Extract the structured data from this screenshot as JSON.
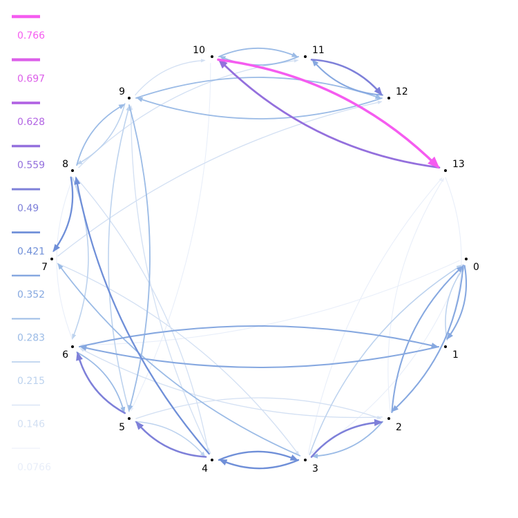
{
  "legend": {
    "entries": [
      {
        "label": "0.766",
        "color": "#f55cf0"
      },
      {
        "label": "0.697",
        "color": "#dc5fe9"
      },
      {
        "label": "0.628",
        "color": "#b264e3"
      },
      {
        "label": "0.559",
        "color": "#9470dd"
      },
      {
        "label": "0.49",
        "color": "#7e80d9"
      },
      {
        "label": "0.421",
        "color": "#6f8fd8"
      },
      {
        "label": "0.352",
        "color": "#86a8e0"
      },
      {
        "label": "0.283",
        "color": "#9bbbe6"
      },
      {
        "label": "0.215",
        "color": "#bcd2ee"
      },
      {
        "label": "0.146",
        "color": "#d3e0f3"
      },
      {
        "label": "0.0766",
        "color": "#e8eef9"
      }
    ]
  },
  "nodes": [
    {
      "id": "0",
      "label": "0"
    },
    {
      "id": "1",
      "label": "1"
    },
    {
      "id": "2",
      "label": "2"
    },
    {
      "id": "3",
      "label": "3"
    },
    {
      "id": "4",
      "label": "4"
    },
    {
      "id": "5",
      "label": "5"
    },
    {
      "id": "6",
      "label": "6"
    },
    {
      "id": "7",
      "label": "7"
    },
    {
      "id": "8",
      "label": "8"
    },
    {
      "id": "9",
      "label": "9"
    },
    {
      "id": "10",
      "label": "10"
    },
    {
      "id": "11",
      "label": "11"
    },
    {
      "id": "12",
      "label": "12"
    },
    {
      "id": "13",
      "label": "13"
    }
  ],
  "edges": [
    {
      "from": "10",
      "to": "13",
      "weight": 0.766
    },
    {
      "from": "13",
      "to": "10",
      "weight": 0.559
    },
    {
      "from": "11",
      "to": "12",
      "weight": 0.49
    },
    {
      "from": "12",
      "to": "11",
      "weight": 0.352
    },
    {
      "from": "10",
      "to": "11",
      "weight": 0.283
    },
    {
      "from": "11",
      "to": "10",
      "weight": 0.283
    },
    {
      "from": "12",
      "to": "9",
      "weight": 0.283
    },
    {
      "from": "9",
      "to": "12",
      "weight": 0.283
    },
    {
      "from": "8",
      "to": "7",
      "weight": 0.421
    },
    {
      "from": "8",
      "to": "9",
      "weight": 0.283
    },
    {
      "from": "9",
      "to": "8",
      "weight": 0.215
    },
    {
      "from": "4",
      "to": "5",
      "weight": 0.49
    },
    {
      "from": "5",
      "to": "6",
      "weight": 0.49
    },
    {
      "from": "3",
      "to": "4",
      "weight": 0.421
    },
    {
      "from": "4",
      "to": "3",
      "weight": 0.421
    },
    {
      "from": "3",
      "to": "2",
      "weight": 0.49
    },
    {
      "from": "4",
      "to": "8",
      "weight": 0.421
    },
    {
      "from": "2",
      "to": "0",
      "weight": 0.352
    },
    {
      "from": "0",
      "to": "2",
      "weight": 0.352
    },
    {
      "from": "0",
      "to": "1",
      "weight": 0.352
    },
    {
      "from": "1",
      "to": "6",
      "weight": 0.352
    },
    {
      "from": "6",
      "to": "1",
      "weight": 0.352
    },
    {
      "from": "2",
      "to": "3",
      "weight": 0.283
    },
    {
      "from": "3",
      "to": "7",
      "weight": 0.283
    },
    {
      "from": "9",
      "to": "5",
      "weight": 0.283
    },
    {
      "from": "5",
      "to": "9",
      "weight": 0.215
    },
    {
      "from": "8",
      "to": "6",
      "weight": 0.215
    },
    {
      "from": "6",
      "to": "5",
      "weight": 0.283
    },
    {
      "from": "1",
      "to": "0",
      "weight": 0.215
    },
    {
      "from": "3",
      "to": "0",
      "weight": 0.215
    },
    {
      "from": "5",
      "to": "4",
      "weight": 0.215
    },
    {
      "from": "8",
      "to": "11",
      "weight": 0.146
    },
    {
      "from": "9",
      "to": "10",
      "weight": 0.146
    },
    {
      "from": "7",
      "to": "12",
      "weight": 0.146
    },
    {
      "from": "8",
      "to": "4",
      "weight": 0.146
    },
    {
      "from": "4",
      "to": "9",
      "weight": 0.146
    },
    {
      "from": "5",
      "to": "2",
      "weight": 0.146
    },
    {
      "from": "7",
      "to": "3",
      "weight": 0.146
    },
    {
      "from": "2",
      "to": "6",
      "weight": 0.146
    },
    {
      "from": "3",
      "to": "13",
      "weight": 0.0766
    },
    {
      "from": "2",
      "to": "13",
      "weight": 0.0766
    },
    {
      "from": "0",
      "to": "6",
      "weight": 0.0766
    },
    {
      "from": "6",
      "to": "8",
      "weight": 0.0766
    },
    {
      "from": "10",
      "to": "5",
      "weight": 0.0766
    },
    {
      "from": "0",
      "to": "3",
      "weight": 0.0766
    },
    {
      "from": "13",
      "to": "1",
      "weight": 0.0766
    }
  ]
}
